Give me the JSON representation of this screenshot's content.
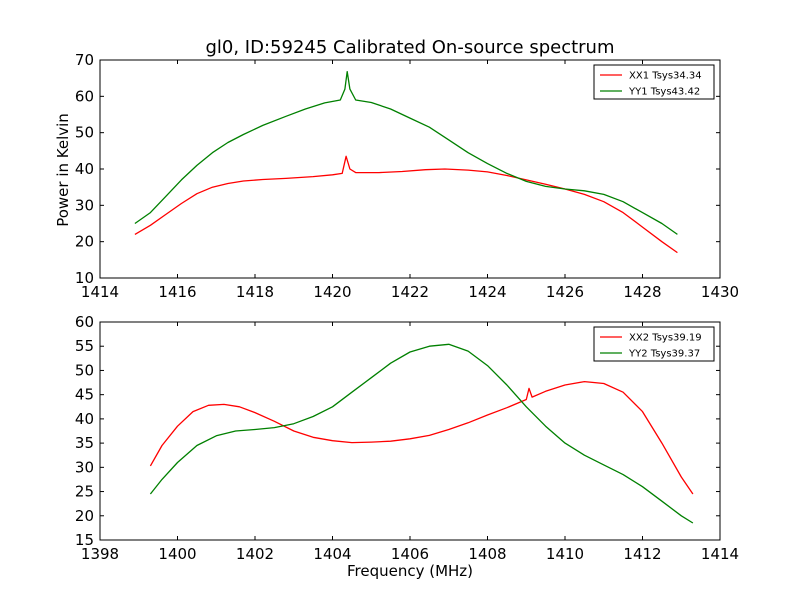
{
  "figure": {
    "title": "gl0, ID:59245 Calibrated On-source spectrum",
    "ylabel": "Power in Kelvin",
    "xlabel": "Frequency (MHz)"
  },
  "chart_data": [
    {
      "type": "line",
      "xlim": [
        1414,
        1430
      ],
      "ylim": [
        10,
        70
      ],
      "xticks": [
        1414,
        1416,
        1418,
        1420,
        1422,
        1424,
        1426,
        1428,
        1430
      ],
      "yticks": [
        10,
        20,
        30,
        40,
        50,
        60,
        70
      ],
      "grid": false,
      "legend_position": "top-right",
      "series": [
        {
          "name": "XX1 Tsys34.34",
          "color": "#ff0000",
          "points": [
            [
              1414.9,
              22
            ],
            [
              1415.3,
              24.5
            ],
            [
              1415.7,
              27.5
            ],
            [
              1416.1,
              30.5
            ],
            [
              1416.5,
              33.2
            ],
            [
              1416.9,
              35
            ],
            [
              1417.3,
              36
            ],
            [
              1417.7,
              36.7
            ],
            [
              1418.2,
              37.1
            ],
            [
              1418.8,
              37.4
            ],
            [
              1419.5,
              37.9
            ],
            [
              1420.0,
              38.4
            ],
            [
              1420.25,
              38.8
            ],
            [
              1420.35,
              43.5
            ],
            [
              1420.45,
              40
            ],
            [
              1420.6,
              39
            ],
            [
              1421.2,
              39
            ],
            [
              1421.8,
              39.3
            ],
            [
              1422.4,
              39.8
            ],
            [
              1422.9,
              40
            ],
            [
              1423.5,
              39.7
            ],
            [
              1424.0,
              39.2
            ],
            [
              1424.5,
              38.2
            ],
            [
              1425.0,
              37
            ],
            [
              1425.5,
              35.8
            ],
            [
              1426.0,
              34.5
            ],
            [
              1426.5,
              33
            ],
            [
              1427.0,
              31
            ],
            [
              1427.5,
              28
            ],
            [
              1428.0,
              24
            ],
            [
              1428.5,
              20
            ],
            [
              1428.9,
              17
            ]
          ]
        },
        {
          "name": "YY1 Tsys43.42",
          "color": "#008000",
          "points": [
            [
              1414.9,
              25
            ],
            [
              1415.3,
              28
            ],
            [
              1415.7,
              32.5
            ],
            [
              1416.1,
              37
            ],
            [
              1416.5,
              41
            ],
            [
              1416.9,
              44.5
            ],
            [
              1417.3,
              47.3
            ],
            [
              1417.7,
              49.5
            ],
            [
              1418.2,
              52
            ],
            [
              1418.8,
              54.5
            ],
            [
              1419.3,
              56.5
            ],
            [
              1419.8,
              58.2
            ],
            [
              1420.2,
              59
            ],
            [
              1420.32,
              62
            ],
            [
              1420.38,
              66.8
            ],
            [
              1420.45,
              62
            ],
            [
              1420.6,
              59
            ],
            [
              1421.0,
              58.3
            ],
            [
              1421.5,
              56.5
            ],
            [
              1422.0,
              54
            ],
            [
              1422.5,
              51.5
            ],
            [
              1423.0,
              48
            ],
            [
              1423.5,
              44.5
            ],
            [
              1424.0,
              41.5
            ],
            [
              1424.5,
              38.8
            ],
            [
              1425.0,
              36.6
            ],
            [
              1425.5,
              35.2
            ],
            [
              1426.0,
              34.5
            ],
            [
              1426.5,
              34
            ],
            [
              1427.0,
              33
            ],
            [
              1427.5,
              31
            ],
            [
              1428.0,
              28
            ],
            [
              1428.5,
              25
            ],
            [
              1428.9,
              22
            ]
          ]
        }
      ]
    },
    {
      "type": "line",
      "xlim": [
        1398,
        1414
      ],
      "ylim": [
        15,
        60
      ],
      "xticks": [
        1398,
        1400,
        1402,
        1404,
        1406,
        1408,
        1410,
        1412,
        1414
      ],
      "yticks": [
        15,
        20,
        25,
        30,
        35,
        40,
        45,
        50,
        55,
        60
      ],
      "grid": false,
      "legend_position": "top-right",
      "series": [
        {
          "name": "XX2 Tsys39.19",
          "color": "#ff0000",
          "points": [
            [
              1399.3,
              30.3
            ],
            [
              1399.6,
              34.5
            ],
            [
              1400.0,
              38.5
            ],
            [
              1400.4,
              41.5
            ],
            [
              1400.8,
              42.8
            ],
            [
              1401.2,
              43
            ],
            [
              1401.6,
              42.5
            ],
            [
              1402.0,
              41.3
            ],
            [
              1402.5,
              39.5
            ],
            [
              1403.0,
              37.5
            ],
            [
              1403.5,
              36.2
            ],
            [
              1404.0,
              35.5
            ],
            [
              1404.5,
              35.1
            ],
            [
              1405.0,
              35.2
            ],
            [
              1405.5,
              35.4
            ],
            [
              1406.0,
              35.9
            ],
            [
              1406.5,
              36.6
            ],
            [
              1407.0,
              37.8
            ],
            [
              1407.5,
              39.2
            ],
            [
              1408.0,
              40.8
            ],
            [
              1408.5,
              42.3
            ],
            [
              1409.0,
              44
            ],
            [
              1409.07,
              46.3
            ],
            [
              1409.15,
              44.5
            ],
            [
              1409.5,
              45.7
            ],
            [
              1410.0,
              47
            ],
            [
              1410.5,
              47.7
            ],
            [
              1411.0,
              47.3
            ],
            [
              1411.5,
              45.5
            ],
            [
              1412.0,
              41.5
            ],
            [
              1412.5,
              35
            ],
            [
              1413.0,
              28
            ],
            [
              1413.3,
              24.5
            ]
          ]
        },
        {
          "name": "YY2 Tsys39.37",
          "color": "#008000",
          "points": [
            [
              1399.3,
              24.5
            ],
            [
              1399.6,
              27.5
            ],
            [
              1400.0,
              31
            ],
            [
              1400.5,
              34.5
            ],
            [
              1401.0,
              36.5
            ],
            [
              1401.5,
              37.5
            ],
            [
              1402.0,
              37.8
            ],
            [
              1402.5,
              38.2
            ],
            [
              1403.0,
              39
            ],
            [
              1403.5,
              40.5
            ],
            [
              1404.0,
              42.5
            ],
            [
              1404.5,
              45.5
            ],
            [
              1405.0,
              48.5
            ],
            [
              1405.5,
              51.5
            ],
            [
              1406.0,
              53.8
            ],
            [
              1406.5,
              55
            ],
            [
              1407.0,
              55.4
            ],
            [
              1407.5,
              54
            ],
            [
              1408.0,
              51
            ],
            [
              1408.5,
              47
            ],
            [
              1409.0,
              42.5
            ],
            [
              1409.5,
              38.5
            ],
            [
              1410.0,
              35
            ],
            [
              1410.5,
              32.5
            ],
            [
              1411.0,
              30.5
            ],
            [
              1411.5,
              28.5
            ],
            [
              1412.0,
              26
            ],
            [
              1412.5,
              23
            ],
            [
              1413.0,
              20
            ],
            [
              1413.3,
              18.5
            ]
          ]
        }
      ]
    }
  ]
}
